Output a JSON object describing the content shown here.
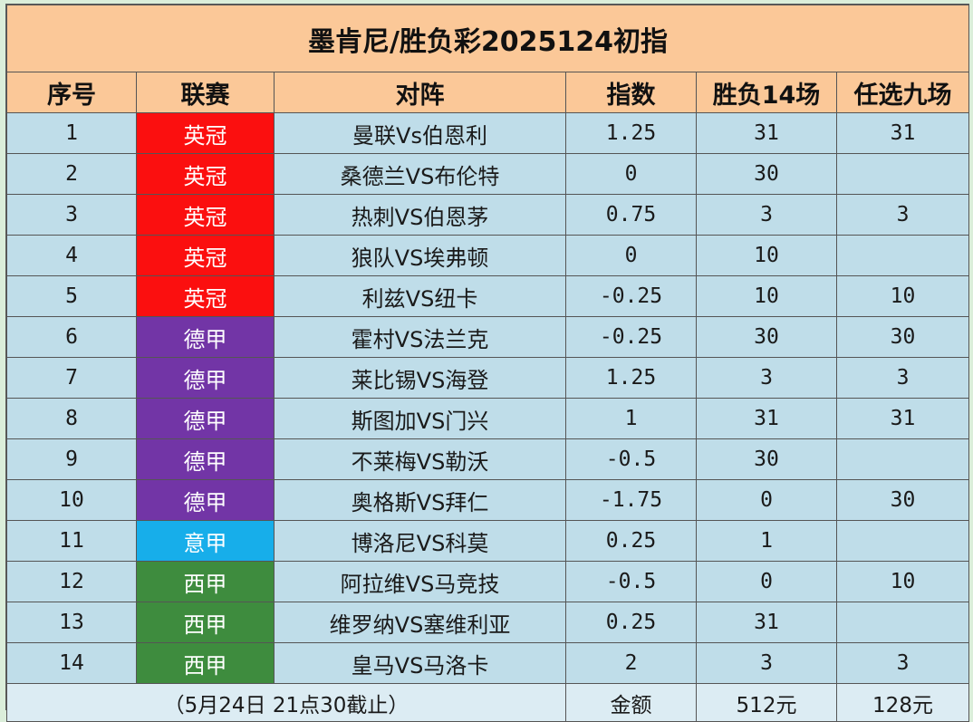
{
  "title": "墨肯尼/胜负彩2025124初指",
  "headers": [
    "序号",
    "联赛",
    "对阵",
    "指数",
    "胜负14场",
    "任选九场"
  ],
  "league_colors": {
    "英冠": "#fb0f0f",
    "德甲": "#7235a6",
    "意甲": "#17aeea",
    "西甲": "#3e8c3e"
  },
  "rows": [
    {
      "no": "1",
      "league": "英冠",
      "match": "曼联Vs伯恩利",
      "index": "1.25",
      "sf14": "31",
      "rx9": "31"
    },
    {
      "no": "2",
      "league": "英冠",
      "match": "桑德兰VS布伦特",
      "index": "0",
      "sf14": "30",
      "rx9": ""
    },
    {
      "no": "3",
      "league": "英冠",
      "match": "热刺VS伯恩茅",
      "index": "0.75",
      "sf14": "3",
      "rx9": "3"
    },
    {
      "no": "4",
      "league": "英冠",
      "match": "狼队VS埃弗顿",
      "index": "0",
      "sf14": "10",
      "rx9": ""
    },
    {
      "no": "5",
      "league": "英冠",
      "match": "利兹VS纽卡",
      "index": "-0.25",
      "sf14": "10",
      "rx9": "10"
    },
    {
      "no": "6",
      "league": "德甲",
      "match": "霍村VS法兰克",
      "index": "-0.25",
      "sf14": "30",
      "rx9": "30"
    },
    {
      "no": "7",
      "league": "德甲",
      "match": "莱比锡VS海登",
      "index": "1.25",
      "sf14": "3",
      "rx9": "3"
    },
    {
      "no": "8",
      "league": "德甲",
      "match": "斯图加VS门兴",
      "index": "1",
      "sf14": "31",
      "rx9": "31"
    },
    {
      "no": "9",
      "league": "德甲",
      "match": "不莱梅VS勒沃",
      "index": "-0.5",
      "sf14": "30",
      "rx9": ""
    },
    {
      "no": "10",
      "league": "德甲",
      "match": "奥格斯VS拜仁",
      "index": "-1.75",
      "sf14": "0",
      "rx9": "30"
    },
    {
      "no": "11",
      "league": "意甲",
      "match": "博洛尼VS科莫",
      "index": "0.25",
      "sf14": "1",
      "rx9": ""
    },
    {
      "no": "12",
      "league": "西甲",
      "match": "阿拉维VS马竞技",
      "index": "-0.5",
      "sf14": "0",
      "rx9": "10"
    },
    {
      "no": "13",
      "league": "西甲",
      "match": "维罗纳VS塞维利亚",
      "index": "0.25",
      "sf14": "31",
      "rx9": ""
    },
    {
      "no": "14",
      "league": "西甲",
      "match": "皇马VS马洛卡",
      "index": "2",
      "sf14": "3",
      "rx9": "3"
    }
  ],
  "footer": {
    "deadline": "（5月24日 21点30截止）",
    "amount_label": "金额",
    "sf14_amount": "512元",
    "rx9_amount": "128元"
  }
}
